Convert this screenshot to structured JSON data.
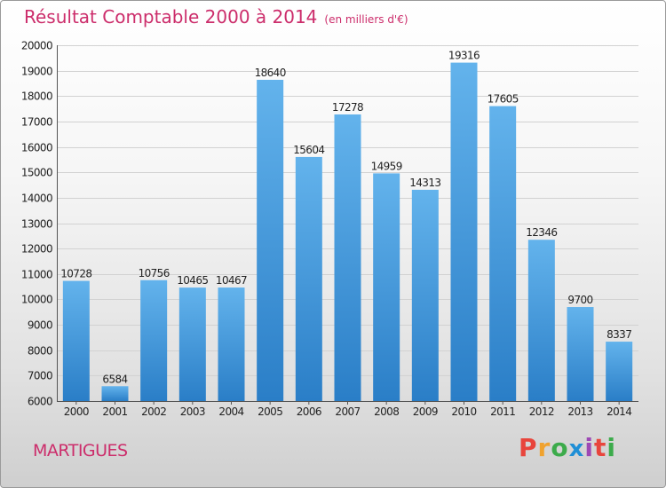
{
  "title": "Résultat Comptable 2000 à 2014",
  "subtitle": "(en milliers d'€)",
  "town": "MARTIGUES",
  "brand": {
    "text": "Proxiti",
    "letters": [
      {
        "char": "P",
        "color": "#e8453c"
      },
      {
        "char": "r",
        "color": "#f0a22e"
      },
      {
        "char": "o",
        "color": "#3cab4b"
      },
      {
        "char": "x",
        "color": "#1f8fd6"
      },
      {
        "char": "i",
        "color": "#9d48b5"
      },
      {
        "char": "t",
        "color": "#e8453c"
      },
      {
        "char": "i",
        "color": "#3cab4b"
      }
    ]
  },
  "colors": {
    "title": "#cc2d6b",
    "bar_top": "#63b3ec",
    "bar_bottom": "#2a7ec7",
    "grid": "#d2d2d2",
    "axis": "#555555",
    "text": "#222222"
  },
  "chart_data": {
    "type": "bar",
    "categories": [
      "2000",
      "2001",
      "2002",
      "2003",
      "2004",
      "2005",
      "2006",
      "2007",
      "2008",
      "2009",
      "2010",
      "2011",
      "2012",
      "2013",
      "2014"
    ],
    "values": [
      10728,
      6584,
      10756,
      10465,
      10467,
      18640,
      15604,
      17278,
      14959,
      14313,
      19316,
      17605,
      12346,
      9700,
      8337
    ],
    "ylim": [
      6000,
      20000
    ],
    "yticks": [
      6000,
      7000,
      8000,
      9000,
      10000,
      11000,
      12000,
      13000,
      14000,
      15000,
      16000,
      17000,
      18000,
      19000,
      20000
    ],
    "grid": true,
    "legend": "none"
  }
}
